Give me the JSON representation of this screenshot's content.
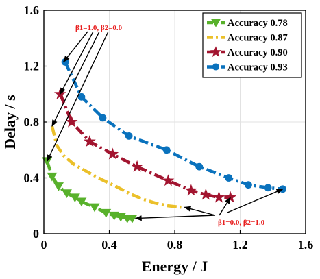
{
  "chart_data": {
    "type": "line",
    "xlabel": "Energy / J",
    "ylabel": "Delay / s",
    "xlim": [
      0,
      1.6
    ],
    "ylim": [
      0,
      1.6
    ],
    "x_ticks": [
      "0",
      "0.4",
      "0.8",
      "1.2",
      "1.6"
    ],
    "y_ticks": [
      "0",
      "0.4",
      "0.8",
      "1.2",
      "1.6"
    ],
    "legend_position": "top-right",
    "grid": true,
    "series": [
      {
        "name": "Accuracy 0.78",
        "color": "#58b12b",
        "marker": "triangle-down",
        "line_style": "dash-dot",
        "x": [
          0.02,
          0.05,
          0.09,
          0.14,
          0.19,
          0.23,
          0.31,
          0.38,
          0.43,
          0.47,
          0.51,
          0.54
        ],
        "y": [
          0.52,
          0.41,
          0.34,
          0.29,
          0.26,
          0.23,
          0.19,
          0.15,
          0.13,
          0.12,
          0.11,
          0.11
        ]
      },
      {
        "name": "Accuracy 0.87",
        "color": "#ebc02a",
        "marker": "none",
        "line_style": "dash-dot",
        "x": [
          0.05,
          0.08,
          0.12,
          0.18,
          0.27,
          0.35,
          0.44,
          0.52,
          0.6,
          0.68,
          0.76,
          0.84
        ],
        "y": [
          0.77,
          0.63,
          0.56,
          0.5,
          0.44,
          0.39,
          0.34,
          0.29,
          0.25,
          0.22,
          0.2,
          0.19
        ]
      },
      {
        "name": "Accuracy 0.90",
        "color": "#a2142f",
        "marker": "star",
        "line_style": "dash-dot",
        "x": [
          0.1,
          0.17,
          0.28,
          0.42,
          0.57,
          0.76,
          0.9,
          0.99,
          1.07,
          1.14
        ],
        "y": [
          1.0,
          0.8,
          0.66,
          0.57,
          0.48,
          0.38,
          0.31,
          0.28,
          0.26,
          0.26
        ]
      },
      {
        "name": "Accuracy 0.93",
        "color": "#0a72bd",
        "marker": "circle",
        "line_style": "dash-dot",
        "x": [
          0.13,
          0.23,
          0.36,
          0.52,
          0.75,
          0.95,
          1.13,
          1.25,
          1.37,
          1.46
        ],
        "y": [
          1.23,
          0.98,
          0.83,
          0.7,
          0.6,
          0.48,
          0.4,
          0.35,
          0.33,
          0.32
        ]
      }
    ],
    "annotations": [
      {
        "text": "β1=1.0, β2=0.0",
        "color": "#e82020",
        "arrow_targets": [
          [
            0.12,
            1.23
          ],
          [
            0.1,
            1.0
          ],
          [
            0.05,
            0.77
          ],
          [
            0.02,
            0.52
          ]
        ]
      },
      {
        "text": "β1=0.0, β2=1.0",
        "color": "#e82020",
        "arrow_targets": [
          [
            1.46,
            0.32
          ],
          [
            1.14,
            0.26
          ],
          [
            0.86,
            0.19
          ],
          [
            0.56,
            0.11
          ]
        ]
      }
    ]
  }
}
